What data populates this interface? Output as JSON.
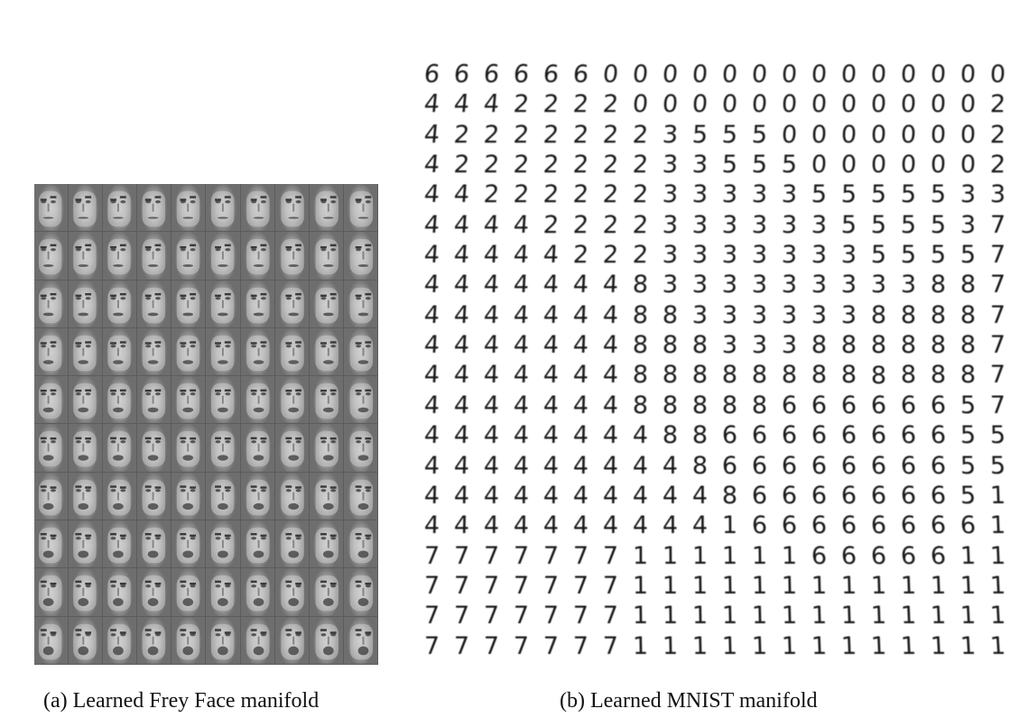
{
  "figure": {
    "caption_a": "(a) Learned Frey Face manifold",
    "caption_b": "(b) Learned MNIST manifold"
  },
  "frey_face_grid": {
    "rows": 10,
    "cols": 10,
    "colors": {
      "background": "#7a7a7a",
      "skin_light": "#d9d9d9",
      "feature_dark": "#3a3a3a"
    }
  },
  "mnist_grid": {
    "rows": 20,
    "cols": 20,
    "digits": [
      "66666600000000000000",
      "44422220000000000002",
      "42222222355500000002",
      "42222222335550000002",
      "44222222333335555533",
      "44442222333333555537",
      "44444222333333355557",
      "44444448333333333887",
      "44444448833333388887",
      "44444448883338888887",
      "44444448888888888887",
      "44444448888866666657",
      "44444444886666666655",
      "44444444486666666655",
      "44444444448666666651",
      "44444444441666666661",
      "77777771111116666611",
      "77777771111111111111",
      "77777771111111111111",
      "77777771111111111111"
    ]
  }
}
